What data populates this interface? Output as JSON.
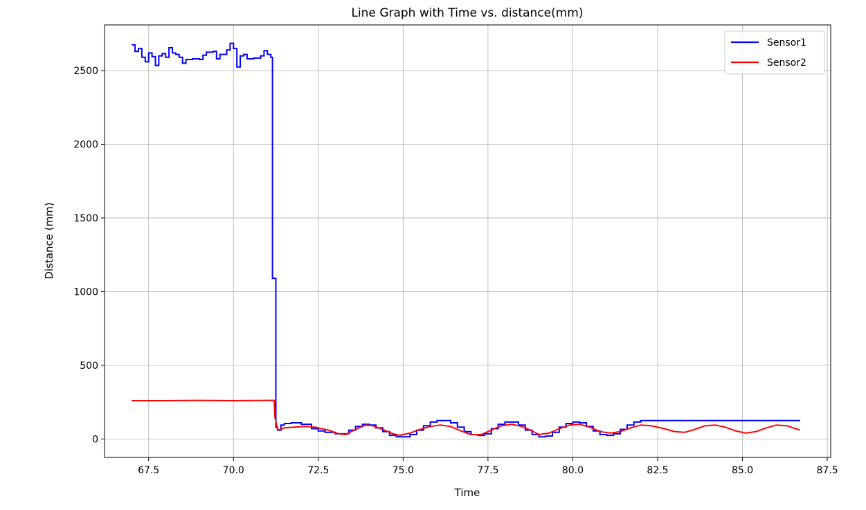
{
  "chart_data": {
    "type": "line",
    "title": "Line Graph with Time vs. distance(mm)",
    "xlabel": "Time",
    "ylabel": "Distance (mm)",
    "xlim": [
      66.2,
      87.6
    ],
    "ylim": [
      -125,
      2810
    ],
    "xticks": [
      67.5,
      70.0,
      72.5,
      75.0,
      77.5,
      80.0,
      82.5,
      85.0,
      87.5
    ],
    "xtick_labels": [
      "67.5",
      "70.0",
      "72.5",
      "75.0",
      "77.5",
      "80.0",
      "82.5",
      "85.0",
      "87.5"
    ],
    "yticks": [
      0,
      500,
      1000,
      1500,
      2000,
      2500
    ],
    "ytick_labels": [
      "0",
      "500",
      "1000",
      "1500",
      "2000",
      "2500"
    ],
    "grid": true,
    "legend_position": "top-right",
    "series": [
      {
        "name": "Sensor1",
        "color": "#0000ff",
        "step": true,
        "points": [
          [
            67.0,
            2675
          ],
          [
            67.1,
            2630
          ],
          [
            67.2,
            2650
          ],
          [
            67.3,
            2590
          ],
          [
            67.4,
            2560
          ],
          [
            67.5,
            2620
          ],
          [
            67.6,
            2595
          ],
          [
            67.7,
            2535
          ],
          [
            67.8,
            2600
          ],
          [
            67.9,
            2615
          ],
          [
            68.0,
            2590
          ],
          [
            68.1,
            2655
          ],
          [
            68.2,
            2620
          ],
          [
            68.3,
            2610
          ],
          [
            68.4,
            2590
          ],
          [
            68.5,
            2550
          ],
          [
            68.6,
            2575
          ],
          [
            68.8,
            2580
          ],
          [
            69.0,
            2575
          ],
          [
            69.1,
            2605
          ],
          [
            69.2,
            2625
          ],
          [
            69.4,
            2630
          ],
          [
            69.5,
            2580
          ],
          [
            69.6,
            2610
          ],
          [
            69.8,
            2640
          ],
          [
            69.9,
            2685
          ],
          [
            70.0,
            2650
          ],
          [
            70.1,
            2525
          ],
          [
            70.2,
            2600
          ],
          [
            70.3,
            2610
          ],
          [
            70.4,
            2580
          ],
          [
            70.6,
            2585
          ],
          [
            70.8,
            2600
          ],
          [
            70.9,
            2635
          ],
          [
            71.0,
            2610
          ],
          [
            71.1,
            2590
          ],
          [
            71.15,
            1090
          ],
          [
            71.2,
            1090
          ],
          [
            71.25,
            80
          ],
          [
            71.3,
            60
          ],
          [
            71.4,
            95
          ],
          [
            71.5,
            105
          ],
          [
            71.7,
            110
          ],
          [
            72.0,
            100
          ],
          [
            72.3,
            70
          ],
          [
            72.5,
            55
          ],
          [
            72.7,
            45
          ],
          [
            73.0,
            35
          ],
          [
            73.2,
            35
          ],
          [
            73.4,
            60
          ],
          [
            73.6,
            85
          ],
          [
            73.8,
            100
          ],
          [
            74.0,
            95
          ],
          [
            74.2,
            75
          ],
          [
            74.4,
            50
          ],
          [
            74.6,
            25
          ],
          [
            74.8,
            15
          ],
          [
            75.0,
            15
          ],
          [
            75.2,
            30
          ],
          [
            75.4,
            60
          ],
          [
            75.6,
            90
          ],
          [
            75.8,
            115
          ],
          [
            76.0,
            125
          ],
          [
            76.2,
            125
          ],
          [
            76.4,
            110
          ],
          [
            76.6,
            80
          ],
          [
            76.8,
            50
          ],
          [
            77.0,
            30
          ],
          [
            77.2,
            25
          ],
          [
            77.4,
            35
          ],
          [
            77.6,
            70
          ],
          [
            77.8,
            100
          ],
          [
            78.0,
            115
          ],
          [
            78.2,
            115
          ],
          [
            78.4,
            95
          ],
          [
            78.6,
            60
          ],
          [
            78.8,
            30
          ],
          [
            79.0,
            15
          ],
          [
            79.2,
            20
          ],
          [
            79.4,
            45
          ],
          [
            79.6,
            80
          ],
          [
            79.8,
            105
          ],
          [
            80.0,
            115
          ],
          [
            80.2,
            110
          ],
          [
            80.4,
            85
          ],
          [
            80.6,
            55
          ],
          [
            80.8,
            30
          ],
          [
            81.0,
            25
          ],
          [
            81.2,
            35
          ],
          [
            81.4,
            65
          ],
          [
            81.6,
            95
          ],
          [
            81.8,
            115
          ],
          [
            82.0,
            125
          ],
          [
            86.7,
            125
          ]
        ]
      },
      {
        "name": "Sensor2",
        "color": "#ff0000",
        "step": false,
        "points": [
          [
            67.0,
            260
          ],
          [
            68.0,
            260
          ],
          [
            69.0,
            262
          ],
          [
            70.0,
            260
          ],
          [
            71.0,
            262
          ],
          [
            71.2,
            262
          ],
          [
            71.22,
            150
          ],
          [
            71.3,
            60
          ],
          [
            71.5,
            75
          ],
          [
            71.8,
            80
          ],
          [
            72.1,
            85
          ],
          [
            72.4,
            80
          ],
          [
            72.8,
            60
          ],
          [
            73.1,
            35
          ],
          [
            73.3,
            30
          ],
          [
            73.6,
            65
          ],
          [
            73.9,
            95
          ],
          [
            74.1,
            90
          ],
          [
            74.4,
            65
          ],
          [
            74.7,
            35
          ],
          [
            74.9,
            25
          ],
          [
            75.2,
            40
          ],
          [
            75.5,
            65
          ],
          [
            75.8,
            85
          ],
          [
            76.1,
            95
          ],
          [
            76.4,
            85
          ],
          [
            76.7,
            55
          ],
          [
            77.0,
            30
          ],
          [
            77.3,
            30
          ],
          [
            77.6,
            60
          ],
          [
            77.9,
            90
          ],
          [
            78.2,
            100
          ],
          [
            78.5,
            85
          ],
          [
            78.8,
            55
          ],
          [
            79.0,
            30
          ],
          [
            79.3,
            40
          ],
          [
            79.6,
            70
          ],
          [
            79.9,
            95
          ],
          [
            80.2,
            100
          ],
          [
            80.5,
            80
          ],
          [
            80.8,
            50
          ],
          [
            81.1,
            40
          ],
          [
            81.4,
            50
          ],
          [
            81.7,
            75
          ],
          [
            82.0,
            95
          ],
          [
            82.3,
            90
          ],
          [
            82.7,
            70
          ],
          [
            83.0,
            50
          ],
          [
            83.3,
            45
          ],
          [
            83.6,
            65
          ],
          [
            83.9,
            90
          ],
          [
            84.2,
            95
          ],
          [
            84.5,
            80
          ],
          [
            84.8,
            55
          ],
          [
            85.1,
            40
          ],
          [
            85.4,
            50
          ],
          [
            85.7,
            75
          ],
          [
            86.0,
            95
          ],
          [
            86.3,
            90
          ],
          [
            86.7,
            60
          ]
        ]
      }
    ]
  }
}
